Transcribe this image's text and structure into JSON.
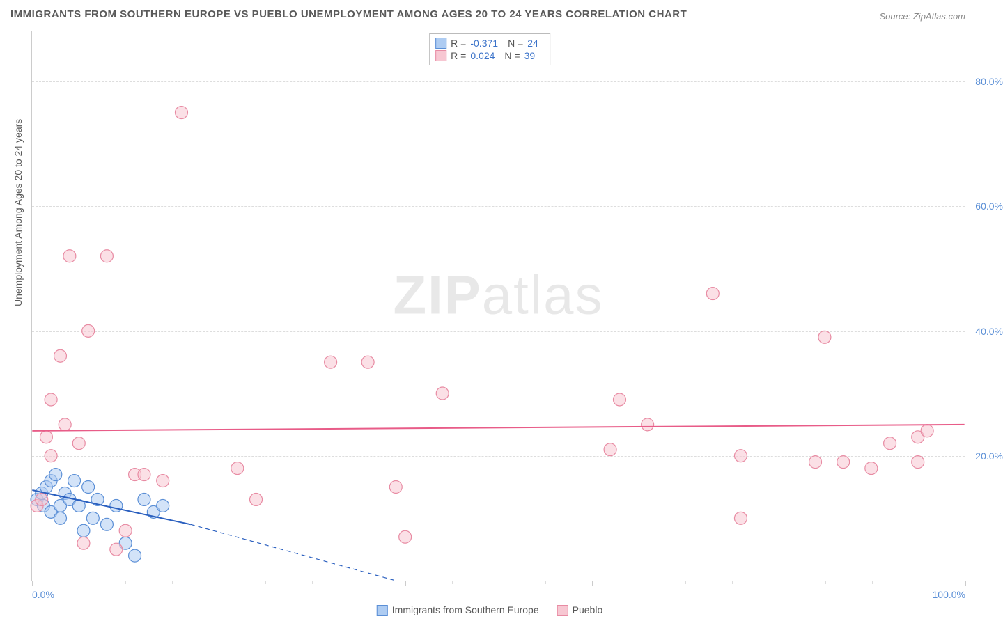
{
  "title": "IMMIGRANTS FROM SOUTHERN EUROPE VS PUEBLO UNEMPLOYMENT AMONG AGES 20 TO 24 YEARS CORRELATION CHART",
  "source_label": "Source: ZipAtlas.com",
  "watermark": "ZIPatlas",
  "ylabel": "Unemployment Among Ages 20 to 24 years",
  "chart": {
    "type": "scatter",
    "background_color": "#ffffff",
    "grid_color": "#dddddd",
    "axis_color": "#cccccc",
    "tick_label_color": "#5b8fd6",
    "xlim": [
      0,
      100
    ],
    "ylim": [
      0,
      88
    ],
    "xtick_labels": [
      {
        "x": 0,
        "label": "0.0%"
      },
      {
        "x": 100,
        "label": "100.0%"
      }
    ],
    "xtick_major": [
      0,
      20,
      40,
      60,
      80,
      100
    ],
    "xtick_minor_step": 5,
    "ytick_labels": [
      {
        "y": 20,
        "label": "20.0%"
      },
      {
        "y": 40,
        "label": "40.0%"
      },
      {
        "y": 60,
        "label": "60.0%"
      },
      {
        "y": 80,
        "label": "80.0%"
      }
    ],
    "marker_radius": 9,
    "marker_opacity": 0.55,
    "marker_stroke_width": 1.2,
    "line_width": 2,
    "dash_pattern": "6,5",
    "series": [
      {
        "name": "Immigrants from Southern Europe",
        "fill": "#aeccf2",
        "stroke": "#5b8fd6",
        "line_color": "#2a5fbf",
        "R": "-0.371",
        "N": "24",
        "points": [
          [
            0.5,
            13
          ],
          [
            1,
            14
          ],
          [
            1.2,
            12
          ],
          [
            1.5,
            15
          ],
          [
            2,
            11
          ],
          [
            2,
            16
          ],
          [
            2.5,
            17
          ],
          [
            3,
            12
          ],
          [
            3,
            10
          ],
          [
            3.5,
            14
          ],
          [
            4,
            13
          ],
          [
            4.5,
            16
          ],
          [
            5,
            12
          ],
          [
            5.5,
            8
          ],
          [
            6,
            15
          ],
          [
            6.5,
            10
          ],
          [
            7,
            13
          ],
          [
            8,
            9
          ],
          [
            9,
            12
          ],
          [
            10,
            6
          ],
          [
            11,
            4
          ],
          [
            12,
            13
          ],
          [
            13,
            11
          ],
          [
            14,
            12
          ]
        ],
        "trend_solid": [
          [
            0,
            14.5
          ],
          [
            17,
            9
          ]
        ],
        "trend_dashed": [
          [
            17,
            9
          ],
          [
            39,
            0
          ]
        ]
      },
      {
        "name": "Pueblo",
        "fill": "#f7c7d2",
        "stroke": "#e88ba3",
        "line_color": "#e85c88",
        "R": "0.024",
        "N": "39",
        "points": [
          [
            0.5,
            12
          ],
          [
            1,
            13
          ],
          [
            1.5,
            23
          ],
          [
            2,
            20
          ],
          [
            2,
            29
          ],
          [
            3,
            36
          ],
          [
            3.5,
            25
          ],
          [
            4,
            52
          ],
          [
            5,
            22
          ],
          [
            5.5,
            6
          ],
          [
            6,
            40
          ],
          [
            8,
            52
          ],
          [
            9,
            5
          ],
          [
            10,
            8
          ],
          [
            11,
            17
          ],
          [
            12,
            17
          ],
          [
            14,
            16
          ],
          [
            16,
            75
          ],
          [
            22,
            18
          ],
          [
            24,
            13
          ],
          [
            32,
            35
          ],
          [
            36,
            35
          ],
          [
            39,
            15
          ],
          [
            40,
            7
          ],
          [
            44,
            30
          ],
          [
            62,
            21
          ],
          [
            63,
            29
          ],
          [
            66,
            25
          ],
          [
            73,
            46
          ],
          [
            76,
            10
          ],
          [
            76,
            20
          ],
          [
            84,
            19
          ],
          [
            85,
            39
          ],
          [
            87,
            19
          ],
          [
            90,
            18
          ],
          [
            92,
            22
          ],
          [
            95,
            23
          ],
          [
            95,
            19
          ],
          [
            96,
            24
          ]
        ],
        "trend_solid": [
          [
            0,
            24
          ],
          [
            100,
            25
          ]
        ],
        "trend_dashed": null
      }
    ]
  },
  "stats_box": {
    "rows": [
      {
        "fill": "#aeccf2",
        "stroke": "#5b8fd6",
        "r_label": "R =",
        "r_val": "-0.371",
        "n_label": "N =",
        "n_val": "24"
      },
      {
        "fill": "#f7c7d2",
        "stroke": "#e88ba3",
        "r_label": "R =",
        "r_val": "0.024",
        "n_label": "N =",
        "n_val": "39"
      }
    ]
  },
  "bottom_legend": [
    {
      "fill": "#aeccf2",
      "stroke": "#5b8fd6",
      "label": "Immigrants from Southern Europe"
    },
    {
      "fill": "#f7c7d2",
      "stroke": "#e88ba3",
      "label": "Pueblo"
    }
  ]
}
